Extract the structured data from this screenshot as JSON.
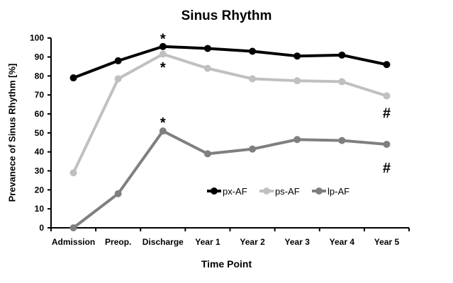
{
  "chart_data": {
    "type": "line",
    "title": "Sinus Rhythm",
    "xlabel": "Time Point",
    "ylabel": "Prevanece of Sinus Rhythm [%]",
    "ylim": [
      0,
      100
    ],
    "yticks": [
      0,
      10,
      20,
      30,
      40,
      50,
      60,
      70,
      80,
      90,
      100
    ],
    "grid": false,
    "legend_position": "inside-lower-center",
    "categories": [
      "Admission",
      "Preop.",
      "Discharge",
      "Year 1",
      "Year 2",
      "Year 3",
      "Year 4",
      "Year 5"
    ],
    "series": [
      {
        "name": "px-AF",
        "color": "#000000",
        "values": [
          79,
          88,
          95.5,
          94.5,
          93,
          90.5,
          91,
          86
        ]
      },
      {
        "name": "ps-AF",
        "color": "#c0c0c0",
        "values": [
          29,
          78.5,
          91.5,
          84,
          78.5,
          77.5,
          77,
          69.5
        ]
      },
      {
        "name": "lp-AF",
        "color": "#7f7f7f",
        "values": [
          0,
          18,
          51,
          39,
          41.5,
          46.5,
          46,
          44
        ]
      }
    ],
    "annotations": [
      {
        "text": "*",
        "category": "Discharge",
        "y": 100
      },
      {
        "text": "*",
        "category": "Discharge",
        "y": 85
      },
      {
        "text": "*",
        "category": "Discharge",
        "y": 56
      },
      {
        "text": "#",
        "category": "Year 5",
        "y": 61
      },
      {
        "text": "#",
        "category": "Year 5",
        "y": 32
      }
    ]
  }
}
